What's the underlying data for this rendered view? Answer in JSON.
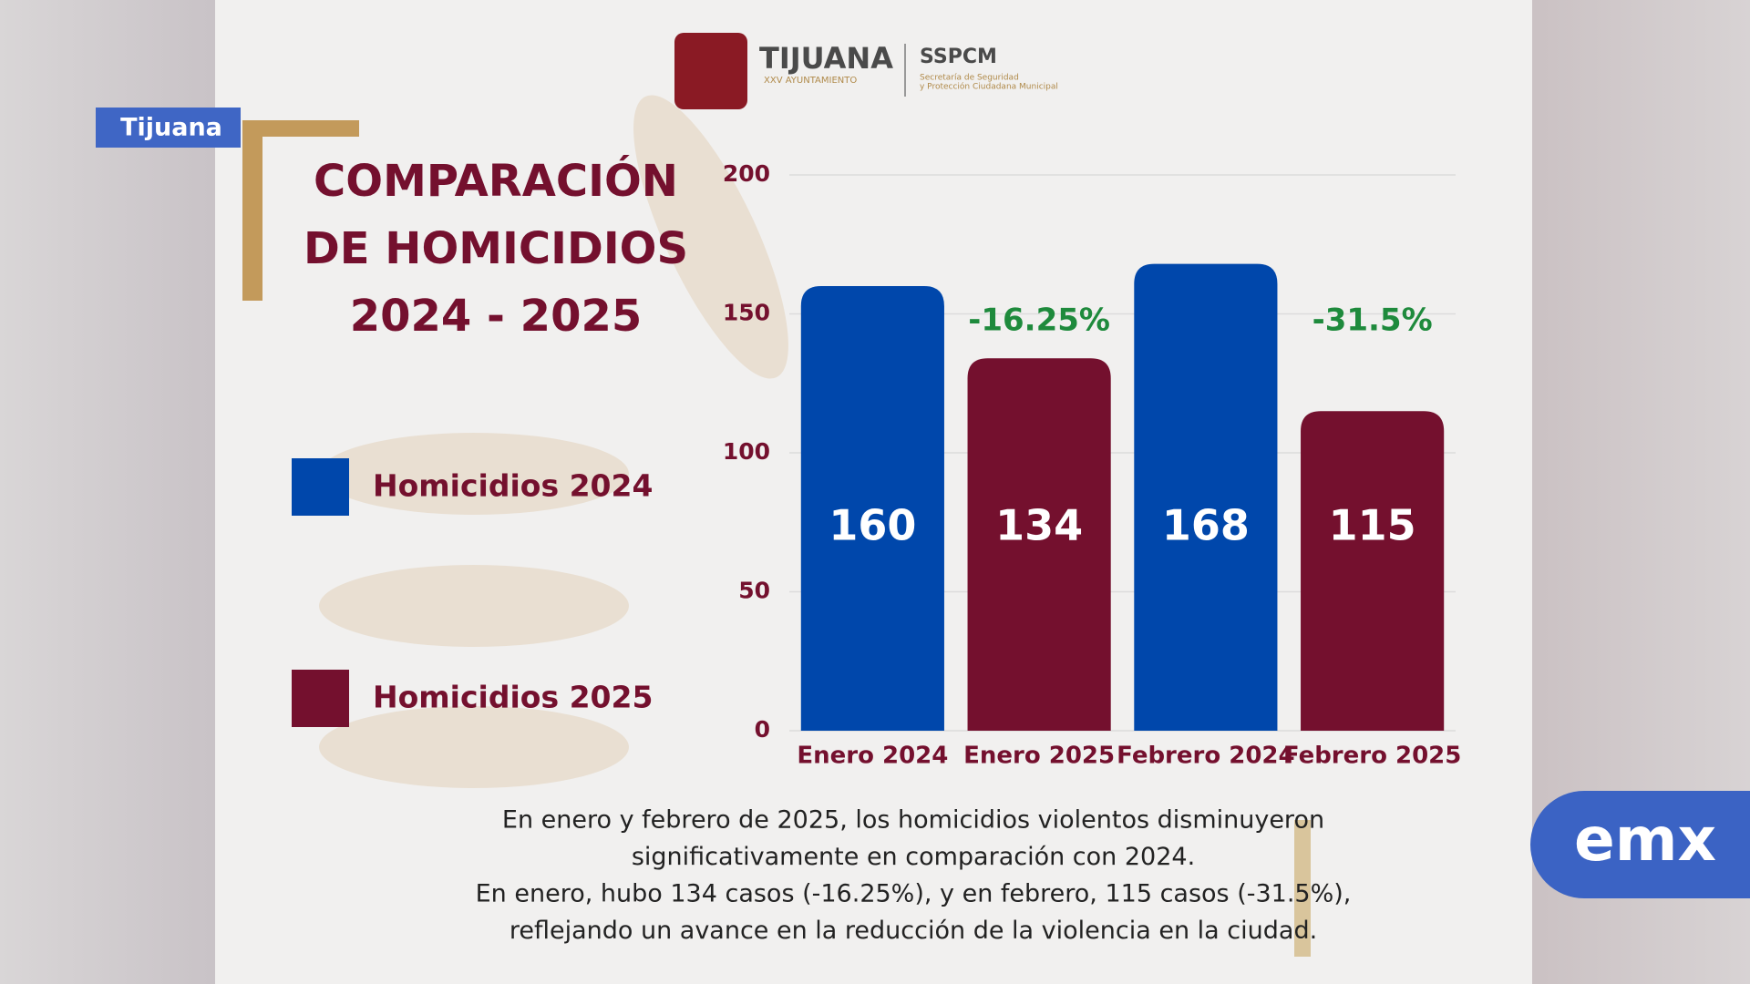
{
  "tag": "Tijuana",
  "header": {
    "brand": "TIJUANA",
    "brand_sub": "XXV AYUNTAMIENTO",
    "dept": "SSPCM",
    "dept_sub_1": "Secretaría de Seguridad",
    "dept_sub_2": "y Protección Ciudadana Municipal"
  },
  "chart_data": {
    "type": "bar",
    "title_lines": [
      "COMPARACIÓN",
      "DE HOMICIDIOS",
      "2024 - 2025"
    ],
    "categories": [
      "Enero 2024",
      "Enero 2025",
      "Febrero 2024",
      "Febrero 2025"
    ],
    "series": [
      {
        "name": "Homicidios 2024",
        "color": "#0047ab",
        "values": [
          160,
          null,
          168,
          null
        ]
      },
      {
        "name": "Homicidios 2025",
        "color": "#74102e",
        "values": [
          null,
          134,
          null,
          115
        ]
      }
    ],
    "annotations": [
      {
        "category": 1,
        "text": "-16.25%"
      },
      {
        "category": 3,
        "text": "-31.5%"
      }
    ],
    "ylim": [
      0,
      200
    ],
    "yticks": [
      0,
      50,
      100,
      150,
      200
    ],
    "grid": true
  },
  "caption": [
    "En enero y febrero de 2025, los homicidios violentos disminuyeron",
    "significativamente en comparación con 2024.",
    "En enero, hubo 134 casos (-16.25%), y en febrero, 115 casos (-31.5%),",
    "reflejando un avance en la reducción de la violencia en la ciudad."
  ],
  "badge": "emx"
}
